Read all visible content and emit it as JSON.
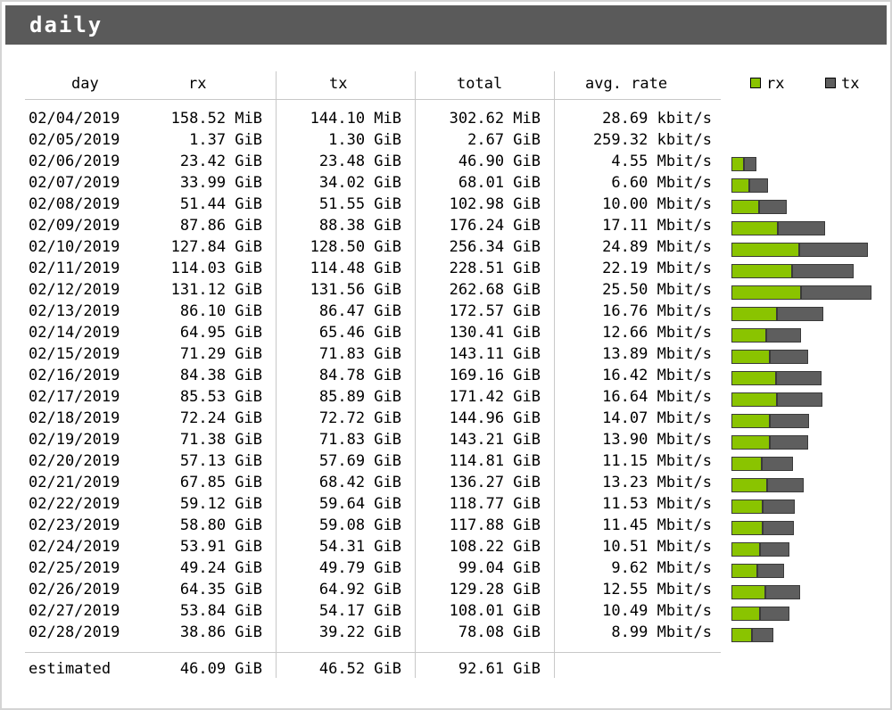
{
  "title": "daily",
  "headers": {
    "day": "day",
    "rx": "rx",
    "tx": "tx",
    "total": "total",
    "rate": "avg. rate"
  },
  "legend": {
    "rx_label": "rx",
    "tx_label": "tx"
  },
  "colors": {
    "rx": "#8ac400",
    "tx": "#5e5e5e",
    "titlebar": "#5a5a5a"
  },
  "rows": [
    {
      "day": "02/04/2019",
      "rx": "158.52 MiB",
      "tx": "144.10 MiB",
      "total": "302.62 MiB",
      "rate": "28.69 kbit/s"
    },
    {
      "day": "02/05/2019",
      "rx": "1.37 GiB",
      "tx": "1.30 GiB",
      "total": "2.67 GiB",
      "rate": "259.32 kbit/s"
    },
    {
      "day": "02/06/2019",
      "rx": "23.42 GiB",
      "tx": "23.48 GiB",
      "total": "46.90 GiB",
      "rate": "4.55 Mbit/s"
    },
    {
      "day": "02/07/2019",
      "rx": "33.99 GiB",
      "tx": "34.02 GiB",
      "total": "68.01 GiB",
      "rate": "6.60 Mbit/s"
    },
    {
      "day": "02/08/2019",
      "rx": "51.44 GiB",
      "tx": "51.55 GiB",
      "total": "102.98 GiB",
      "rate": "10.00 Mbit/s"
    },
    {
      "day": "02/09/2019",
      "rx": "87.86 GiB",
      "tx": "88.38 GiB",
      "total": "176.24 GiB",
      "rate": "17.11 Mbit/s"
    },
    {
      "day": "02/10/2019",
      "rx": "127.84 GiB",
      "tx": "128.50 GiB",
      "total": "256.34 GiB",
      "rate": "24.89 Mbit/s"
    },
    {
      "day": "02/11/2019",
      "rx": "114.03 GiB",
      "tx": "114.48 GiB",
      "total": "228.51 GiB",
      "rate": "22.19 Mbit/s"
    },
    {
      "day": "02/12/2019",
      "rx": "131.12 GiB",
      "tx": "131.56 GiB",
      "total": "262.68 GiB",
      "rate": "25.50 Mbit/s"
    },
    {
      "day": "02/13/2019",
      "rx": "86.10 GiB",
      "tx": "86.47 GiB",
      "total": "172.57 GiB",
      "rate": "16.76 Mbit/s"
    },
    {
      "day": "02/14/2019",
      "rx": "64.95 GiB",
      "tx": "65.46 GiB",
      "total": "130.41 GiB",
      "rate": "12.66 Mbit/s"
    },
    {
      "day": "02/15/2019",
      "rx": "71.29 GiB",
      "tx": "71.83 GiB",
      "total": "143.11 GiB",
      "rate": "13.89 Mbit/s"
    },
    {
      "day": "02/16/2019",
      "rx": "84.38 GiB",
      "tx": "84.78 GiB",
      "total": "169.16 GiB",
      "rate": "16.42 Mbit/s"
    },
    {
      "day": "02/17/2019",
      "rx": "85.53 GiB",
      "tx": "85.89 GiB",
      "total": "171.42 GiB",
      "rate": "16.64 Mbit/s"
    },
    {
      "day": "02/18/2019",
      "rx": "72.24 GiB",
      "tx": "72.72 GiB",
      "total": "144.96 GiB",
      "rate": "14.07 Mbit/s"
    },
    {
      "day": "02/19/2019",
      "rx": "71.38 GiB",
      "tx": "71.83 GiB",
      "total": "143.21 GiB",
      "rate": "13.90 Mbit/s"
    },
    {
      "day": "02/20/2019",
      "rx": "57.13 GiB",
      "tx": "57.69 GiB",
      "total": "114.81 GiB",
      "rate": "11.15 Mbit/s"
    },
    {
      "day": "02/21/2019",
      "rx": "67.85 GiB",
      "tx": "68.42 GiB",
      "total": "136.27 GiB",
      "rate": "13.23 Mbit/s"
    },
    {
      "day": "02/22/2019",
      "rx": "59.12 GiB",
      "tx": "59.64 GiB",
      "total": "118.77 GiB",
      "rate": "11.53 Mbit/s"
    },
    {
      "day": "02/23/2019",
      "rx": "58.80 GiB",
      "tx": "59.08 GiB",
      "total": "117.88 GiB",
      "rate": "11.45 Mbit/s"
    },
    {
      "day": "02/24/2019",
      "rx": "53.91 GiB",
      "tx": "54.31 GiB",
      "total": "108.22 GiB",
      "rate": "10.51 Mbit/s"
    },
    {
      "day": "02/25/2019",
      "rx": "49.24 GiB",
      "tx": "49.79 GiB",
      "total": "99.04 GiB",
      "rate": "9.62 Mbit/s"
    },
    {
      "day": "02/26/2019",
      "rx": "64.35 GiB",
      "tx": "64.92 GiB",
      "total": "129.28 GiB",
      "rate": "12.55 Mbit/s"
    },
    {
      "day": "02/27/2019",
      "rx": "53.84 GiB",
      "tx": "54.17 GiB",
      "total": "108.01 GiB",
      "rate": "10.49 Mbit/s"
    },
    {
      "day": "02/28/2019",
      "rx": "38.86 GiB",
      "tx": "39.22 GiB",
      "total": "78.08 GiB",
      "rate": "8.99 Mbit/s"
    }
  ],
  "estimated": {
    "label": "estimated",
    "rx": "46.09 GiB",
    "tx": "46.52 GiB",
    "total": "92.61 GiB"
  },
  "chart_data": {
    "type": "bar",
    "stacked": true,
    "orientation": "horizontal",
    "unit": "GiB",
    "categories": [
      "02/04/2019",
      "02/05/2019",
      "02/06/2019",
      "02/07/2019",
      "02/08/2019",
      "02/09/2019",
      "02/10/2019",
      "02/11/2019",
      "02/12/2019",
      "02/13/2019",
      "02/14/2019",
      "02/15/2019",
      "02/16/2019",
      "02/17/2019",
      "02/18/2019",
      "02/19/2019",
      "02/20/2019",
      "02/21/2019",
      "02/22/2019",
      "02/23/2019",
      "02/24/2019",
      "02/25/2019",
      "02/26/2019",
      "02/27/2019",
      "02/28/2019"
    ],
    "series": [
      {
        "name": "rx",
        "values": [
          0.155,
          1.37,
          23.42,
          33.99,
          51.44,
          87.86,
          127.84,
          114.03,
          131.12,
          86.1,
          64.95,
          71.29,
          84.38,
          85.53,
          72.24,
          71.38,
          57.13,
          67.85,
          59.12,
          58.8,
          53.91,
          49.24,
          64.35,
          53.84,
          38.86
        ]
      },
      {
        "name": "tx",
        "values": [
          0.141,
          1.3,
          23.48,
          34.02,
          51.55,
          88.38,
          128.5,
          114.48,
          131.56,
          86.47,
          65.46,
          71.83,
          84.78,
          85.89,
          72.72,
          71.83,
          57.69,
          68.42,
          59.64,
          59.08,
          54.31,
          49.79,
          64.92,
          54.17,
          39.22
        ]
      }
    ],
    "legend": "top-right"
  }
}
